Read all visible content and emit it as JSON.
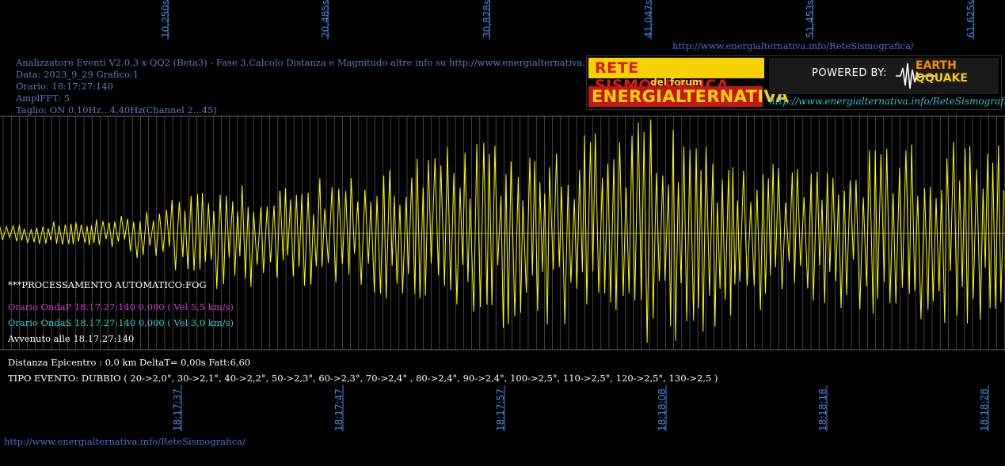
{
  "header": {
    "line1": "Analizzatore Eventi V2.0.3 x QQ2 (Beta3) - Fase 3.Calcolo Distanza e Magnitudo altre info su http://www.energialternativa.info/ReteSism",
    "line2": "Data: 2023_9_29 Grafico:1",
    "line3": "Orario: 18:17:27:140",
    "line4": "AmplFFT: 5",
    "line5": "Taglio: ON 0,10Hz...4,40Hz",
    "line5b": "(Channel 2...45)"
  },
  "top_url": "http://www.energialternativa.info/ReteSismografica/",
  "bottom_url": "http://www.energialternativa.info/ReteSismografica/",
  "logo": {
    "title": "RETE SISMOGRAFICA",
    "subtitle": "del forum",
    "brand": "ENERGIALTERNATIVA",
    "powered": "POWERED BY:",
    "earth": "EARTH",
    "qquake": "QQUAKE",
    "url": "http://www.energialternativa.info/ReteSismografica"
  },
  "info": {
    "processing": "***PROCESSAMENTO AUTOMATICO:FOG",
    "onda_p": "Orario OndaP 18.17.27:140  0,000 ( Vel 5,5 km/s)",
    "onda_s": "Orario OndaS 18.17.27:140  0,000 ( Vel 3,0 km/s)",
    "avvenuto": "Avvenuto alle 18.17.27:140",
    "distanza": "Distanza Epicentro : 0,0 km DeltaT= 0,00s  Fatt:6,60",
    "tipo": "TIPO EVENTO: DUBBIO ( 20->2,0°, 30->2,1°, 40->2,2°, 50->2,3°, 60->2,3°, 70->2,4° , 80->2,4°, 90->2,4°, 100->2,5°, 110->2,5°, 120->2,5°, 130->2,5 )"
  },
  "colors": {
    "background": "#000000",
    "trace": "#ffff00",
    "grid": "#6e6e6e",
    "axis_label": "#3f86e0",
    "header_text": "#5a7dbf",
    "onda_p": "#d23ad2",
    "onda_s": "#2fd0d0"
  },
  "chart_data": {
    "type": "line",
    "title": "",
    "top_tick_labels": [
      "10,250s",
      "20,485s",
      "30,828s",
      "41,047s",
      "51,453s",
      "61,625s"
    ],
    "bottom_tick_labels": [
      "18:17:37",
      "18:17:47",
      "18:17:57",
      "18:18:08",
      "18:18:18",
      "18:18:28"
    ],
    "series": [
      {
        "color": "#ffff00",
        "envelope": {
          "x_s": [
            0,
            4,
            8,
            10,
            14,
            18,
            22,
            26,
            30,
            34,
            38,
            41,
            45,
            50,
            55,
            60,
            63
          ],
          "amplitude": [
            0.08,
            0.12,
            0.18,
            0.35,
            0.55,
            0.5,
            0.55,
            0.8,
            0.85,
            0.95,
            1.0,
            1.1,
            0.9,
            0.65,
            0.8,
            0.9,
            0.85
          ]
        }
      }
    ],
    "ylim": [
      -1.25,
      1.25
    ],
    "grid": true
  }
}
